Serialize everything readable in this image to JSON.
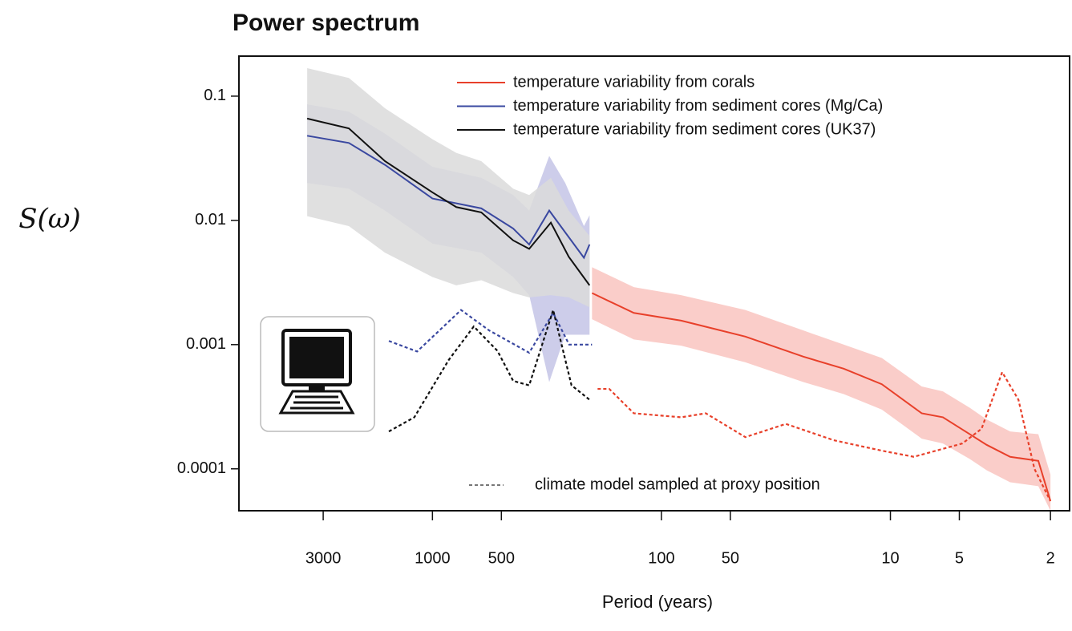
{
  "chart_data": {
    "type": "spectrum",
    "title": "Power spectrum",
    "x_label": "Period (years)",
    "y_label": "S(ω)",
    "log_x": true,
    "log_y": true,
    "x_reversed": true,
    "xlim": [
      7000,
      1.65
    ],
    "ylim": [
      4.6e-05,
      0.21
    ],
    "xticks": [
      3000,
      1000,
      500,
      100,
      50,
      10,
      5,
      2
    ],
    "yticks": [
      0.1,
      0.01,
      0.001,
      0.0001
    ],
    "model_legend": "climate model sampled at proxy position",
    "series": [
      {
        "name": "temperature variability from corals",
        "color": "#e8402a",
        "band_color": "#f9c4c0",
        "x": [
          201,
          132,
          82,
          43,
          24,
          16,
          10.9,
          7.3,
          5.9,
          4.5,
          3.8,
          3.0,
          2.26,
          2
        ],
        "values": [
          0.0026,
          0.0018,
          0.00156,
          0.00116,
          0.0008,
          0.00064,
          0.00048,
          0.00028,
          0.00026,
          0.00019,
          0.000156,
          0.000125,
          0.000116,
          5.5e-05
        ],
        "upper": [
          0.0042,
          0.0029,
          0.0025,
          0.0019,
          0.0013,
          0.001,
          0.00078,
          0.00046,
          0.00042,
          0.00031,
          0.00025,
          0.0002,
          0.00019,
          9e-05
        ],
        "lower": [
          0.0016,
          0.0011,
          0.00098,
          0.00072,
          0.0005,
          0.0004,
          0.0003,
          0.000175,
          0.00016,
          0.00012,
          9.75e-05,
          7.8e-05,
          7.25e-05,
          4.6e-05
        ],
        "model_x": [
          190,
          169,
          132,
          82,
          64,
          43,
          28.6,
          17.7,
          10.9,
          7.9,
          4.85,
          4.0,
          3.25,
          2.76,
          2.35,
          2
        ],
        "model_values": [
          0.00044,
          0.00044,
          0.00028,
          0.00026,
          0.00028,
          0.00018,
          0.00023,
          0.00017,
          0.00014,
          0.000125,
          0.00016,
          0.00021,
          0.0006,
          0.00036,
          0.0001,
          5.5e-05
        ]
      },
      {
        "name": "temperature variability from sediment cores (Mg/Ca)",
        "color": "#3a48a0",
        "band_color": "#c4c4e6",
        "x": [
          3524,
          2317,
          1612,
          1000,
          612,
          444,
          378,
          309,
          263,
          218,
          206
        ],
        "values": [
          0.048,
          0.042,
          0.028,
          0.015,
          0.0125,
          0.0086,
          0.0064,
          0.012,
          0.008,
          0.005,
          0.0064
        ],
        "upper": [
          0.086,
          0.075,
          0.05,
          0.027,
          0.022,
          0.016,
          0.012,
          0.033,
          0.02,
          0.009,
          0.011
        ],
        "lower": [
          0.02,
          0.018,
          0.012,
          0.0065,
          0.0055,
          0.0035,
          0.0025,
          0.0005,
          0.0012,
          0.0012,
          0.0012
        ],
        "model_x": [
          1550,
          1167,
          750,
          565,
          378,
          297,
          253,
          201
        ],
        "model_values": [
          0.00107,
          0.00088,
          0.0019,
          0.0013,
          0.00086,
          0.0018,
          0.001,
          0.001
        ]
      },
      {
        "name": "temperature variability from sediment cores (UK37)",
        "color": "#111111",
        "band_color": "#dadada",
        "x": [
          3524,
          2317,
          1612,
          1000,
          787,
          612,
          444,
          378,
          304,
          254,
          206
        ],
        "values": [
          0.066,
          0.055,
          0.03,
          0.0168,
          0.0128,
          0.0116,
          0.0069,
          0.0059,
          0.0096,
          0.0051,
          0.003
        ],
        "upper": [
          0.168,
          0.14,
          0.08,
          0.045,
          0.035,
          0.03,
          0.018,
          0.016,
          0.022,
          0.012,
          0.0075
        ],
        "lower": [
          0.0108,
          0.009,
          0.0055,
          0.0035,
          0.003,
          0.0033,
          0.0026,
          0.0024,
          0.0025,
          0.0024,
          0.002
        ],
        "model_x": [
          1550,
          1200,
          850,
          660,
          520,
          444,
          378,
          297,
          247,
          206
        ],
        "model_values": [
          0.0002,
          0.00026,
          0.00075,
          0.0014,
          0.00089,
          0.00051,
          0.00047,
          0.0019,
          0.00047,
          0.00036
        ]
      }
    ]
  }
}
